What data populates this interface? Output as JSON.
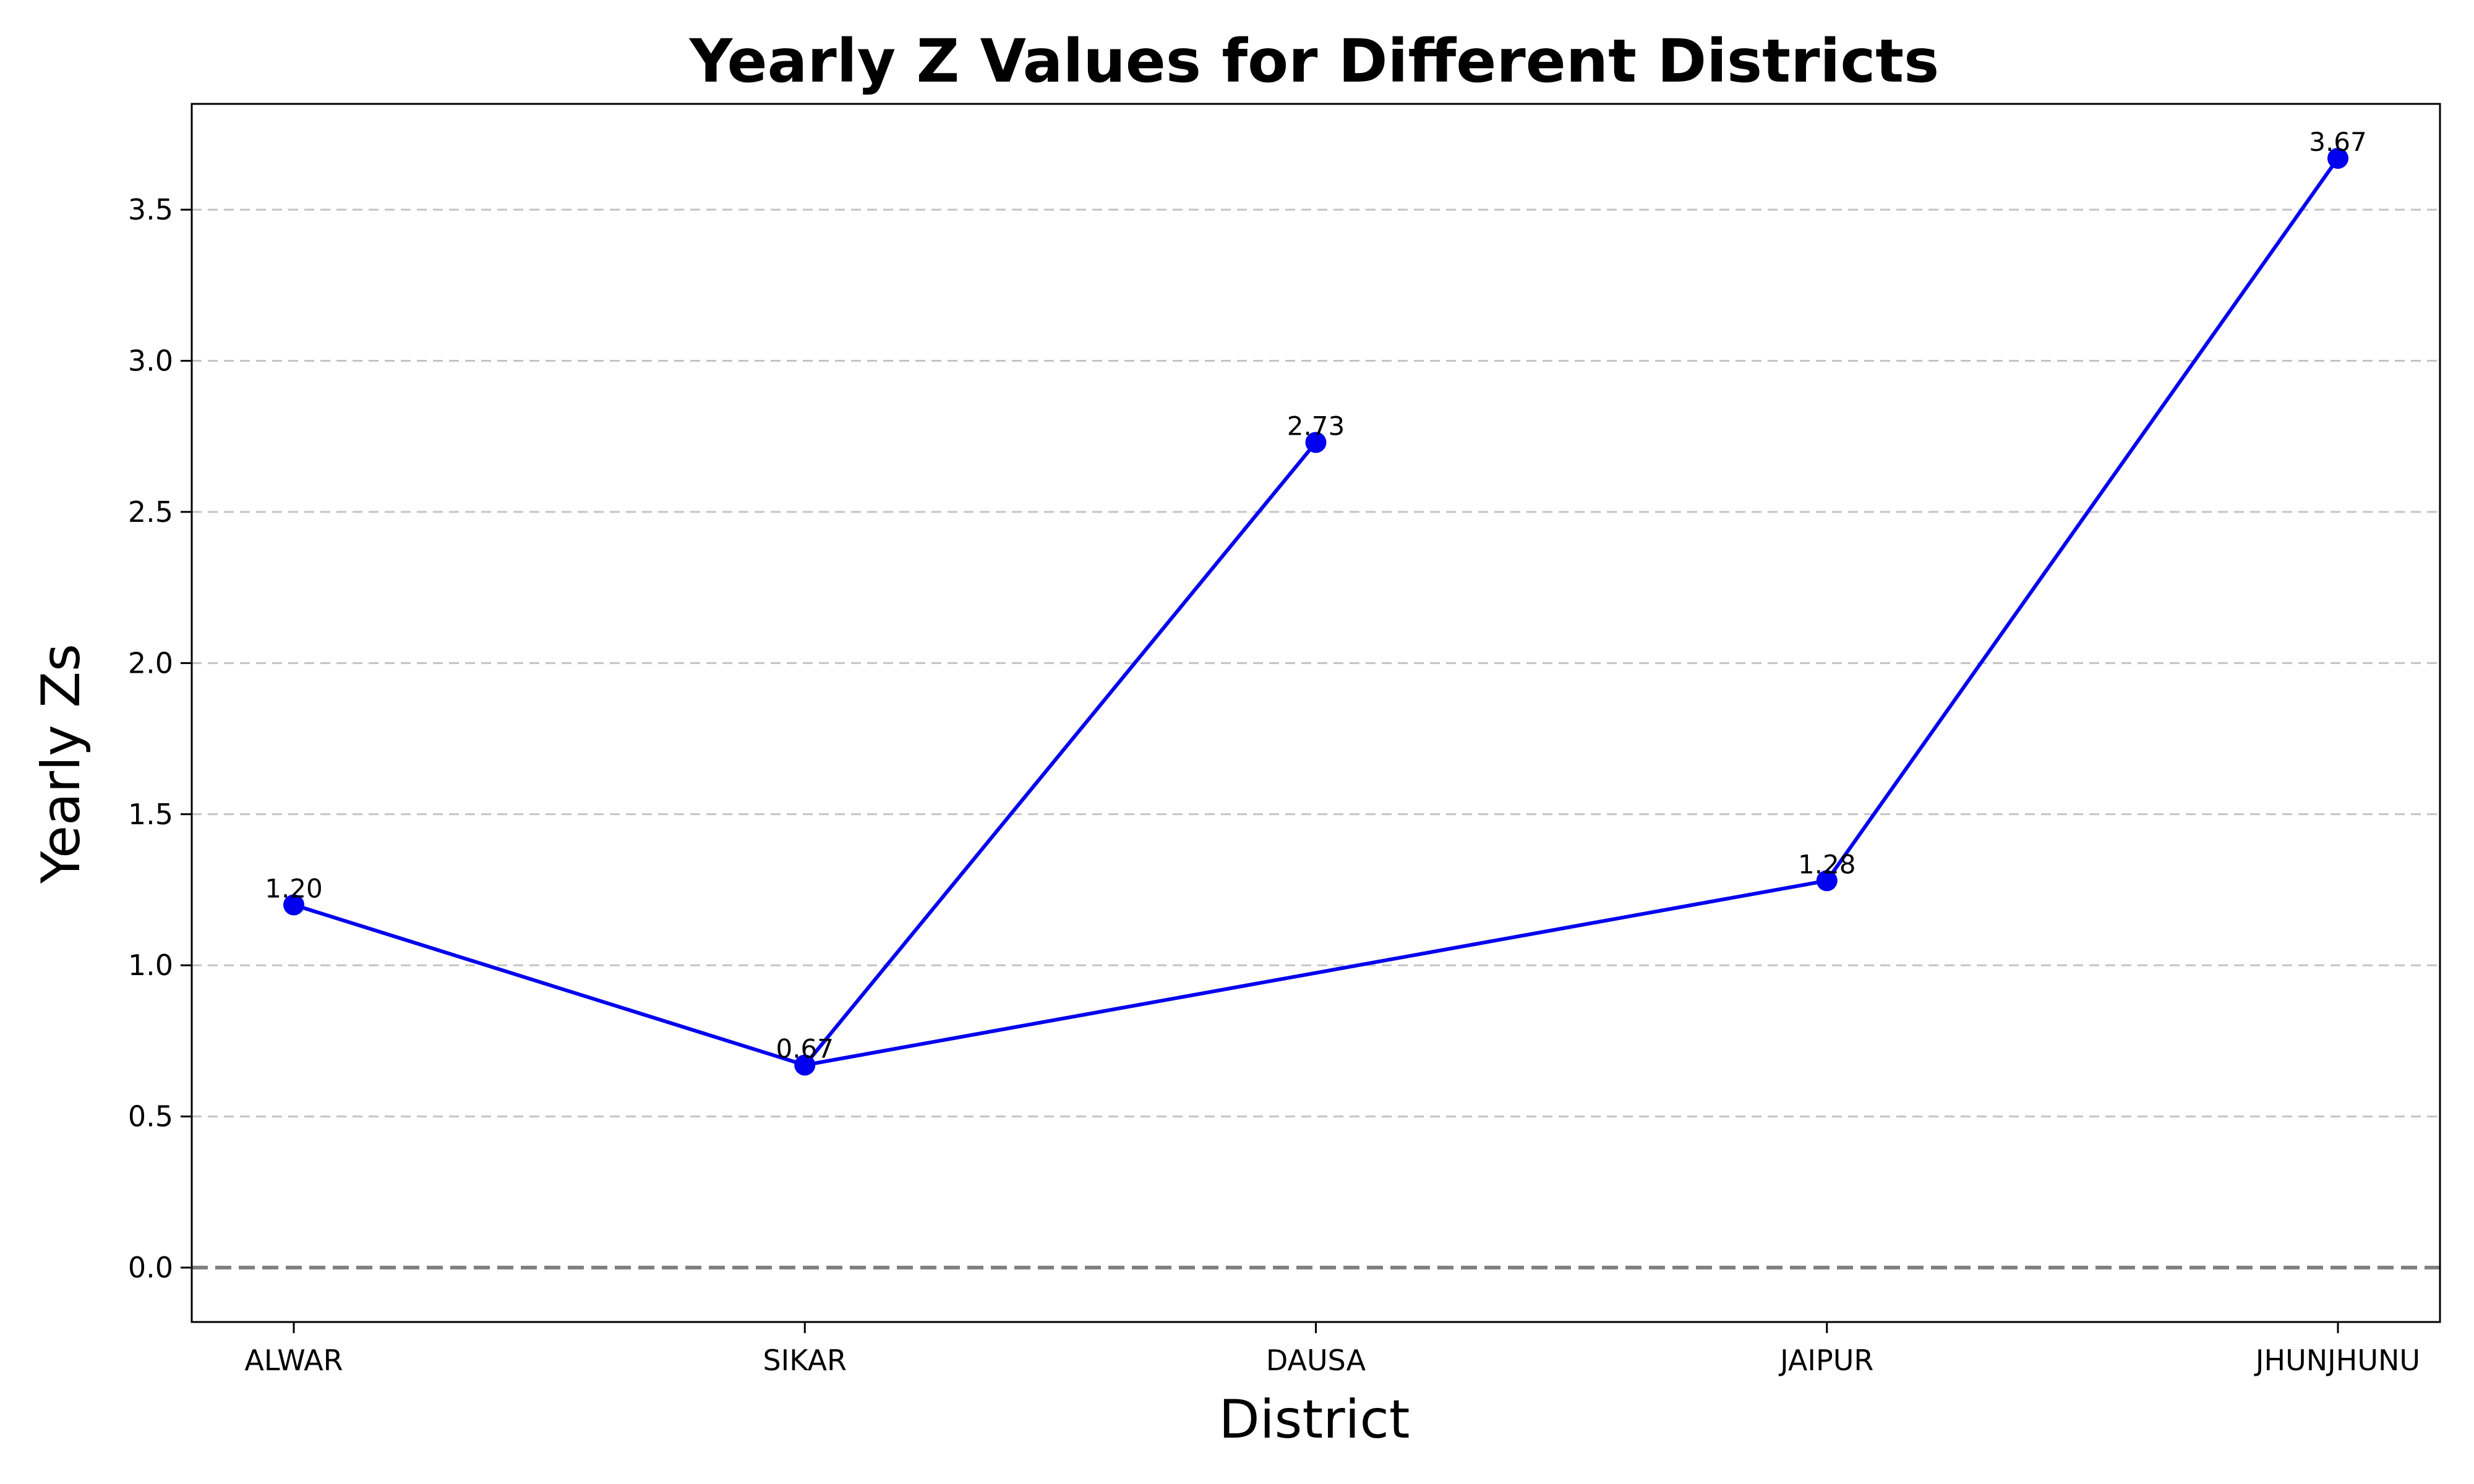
{
  "chart_data": {
    "type": "line",
    "title": "Yearly Z Values for Different Districts",
    "xlabel": "District",
    "ylabel": "Yearly Zs",
    "categories": [
      "ALWAR",
      "SIKAR",
      "DAUSA",
      "JAIPUR",
      "JHUNJHUNU"
    ],
    "points": [
      {
        "x": "ALWAR",
        "y": 1.2,
        "label": "1.20"
      },
      {
        "x": "SIKAR",
        "y": 0.67,
        "label": "0.67"
      },
      {
        "x": "DAUSA",
        "y": 2.73,
        "label": "2.73"
      },
      {
        "x": "SIKAR",
        "y": 0.67,
        "label": "0.67"
      },
      {
        "x": "JAIPUR",
        "y": 1.28,
        "label": "1.28"
      },
      {
        "x": "JHUNJHUNU",
        "y": 3.67,
        "label": "3.67"
      }
    ],
    "ylim": [
      -0.18,
      3.85
    ],
    "yticks": [
      0.0,
      0.5,
      1.0,
      1.5,
      2.0,
      2.5,
      3.0,
      3.5
    ],
    "ytick_labels": [
      "0.0",
      "0.5",
      "1.0",
      "1.5",
      "2.0",
      "2.5",
      "3.0",
      "3.5"
    ],
    "reference_line_y": 0.0,
    "grid": "y-dashed",
    "legend": "none",
    "colors": {
      "series": "#0000ee",
      "grid": "#c4c4c4",
      "reference": "#808080"
    }
  }
}
